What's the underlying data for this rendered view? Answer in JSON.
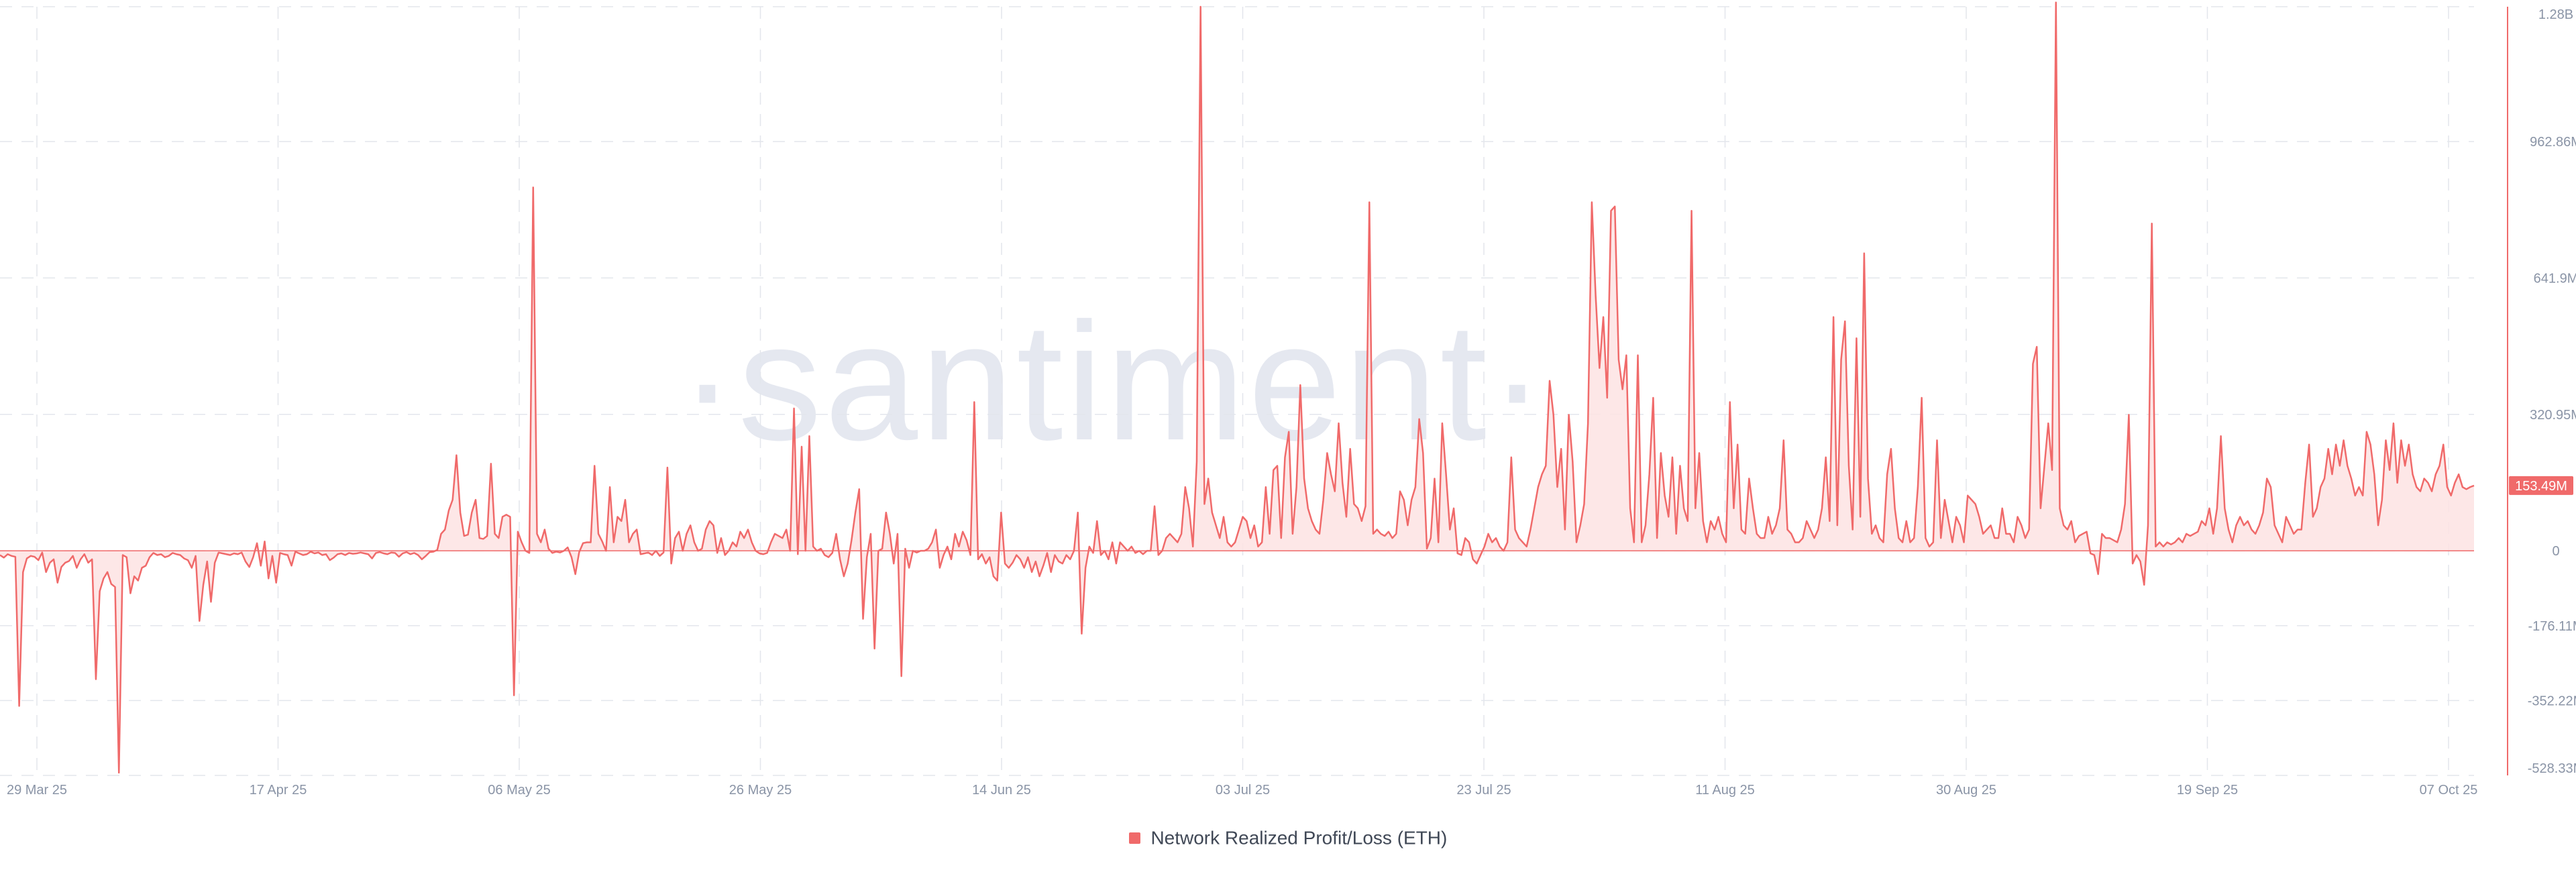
{
  "chart_data": {
    "type": "line",
    "watermark": "·santiment·",
    "x_tick_labels": [
      "29 Mar 25",
      "17 Apr 25",
      "06 May 25",
      "26 May 25",
      "14 Jun 25",
      "03 Jul 25",
      "23 Jul 25",
      "11 Aug 25",
      "30 Aug 25",
      "19 Sep 25",
      "07 Oct 25"
    ],
    "y_tick_labels": [
      {
        "value": 1280,
        "label": "1.28B"
      },
      {
        "value": 962.86,
        "label": "962.86M"
      },
      {
        "value": 641.9,
        "label": "641.9M"
      },
      {
        "value": 320.95,
        "label": "320.95M"
      },
      {
        "value": 0,
        "label": "0"
      },
      {
        "value": -176.11,
        "label": "-176.11M"
      },
      {
        "value": -352.22,
        "label": "-352.22M"
      },
      {
        "value": -528.33,
        "label": "-528.33M"
      }
    ],
    "y_unit": "M",
    "ylim": [
      -528.33,
      1280
    ],
    "x_range": [
      "29 Mar 25",
      "07 Oct 25"
    ],
    "current_value_label": "153.49M",
    "current_value": 153.49,
    "grid": true,
    "legend_position": "bottom-center",
    "series": [
      {
        "name": "Network Realized Profit/Loss (ETH)",
        "color": "#f06a6a",
        "fill": "#fde3e3",
        "values": [
          -10,
          -16,
          -8,
          -12,
          -14,
          -365,
          -50,
          -18,
          -12,
          -14,
          -22,
          -4,
          -50,
          -28,
          -20,
          -75,
          -38,
          -28,
          -24,
          -12,
          -40,
          -20,
          -8,
          -28,
          -20,
          -302,
          -95,
          -65,
          -50,
          -78,
          -85,
          -522,
          -10,
          -15,
          -100,
          -60,
          -70,
          -40,
          -35,
          -15,
          -5,
          -10,
          -8,
          -15,
          -12,
          -5,
          -8,
          -10,
          -18,
          -22,
          -40,
          -12,
          -165,
          -80,
          -25,
          -120,
          -28,
          -4,
          -6,
          -8,
          -10,
          -6,
          -8,
          -4,
          -25,
          -38,
          -15,
          18,
          -35,
          22,
          -65,
          -12,
          -75,
          -5,
          -8,
          -10,
          -35,
          -2,
          -6,
          -10,
          -8,
          -2,
          -6,
          -4,
          -10,
          -8,
          -22,
          -16,
          -8,
          -6,
          -10,
          -5,
          -7,
          -6,
          -4,
          -6,
          -8,
          -18,
          -5,
          -3,
          -6,
          -8,
          -4,
          -5,
          -14,
          -6,
          -3,
          -8,
          -5,
          -10,
          -20,
          -12,
          -3,
          -2,
          2,
          40,
          50,
          95,
          120,
          225,
          90,
          35,
          38,
          90,
          120,
          30,
          28,
          35,
          205,
          40,
          30,
          80,
          85,
          80,
          -340,
          45,
          20,
          0,
          -5,
          855,
          40,
          20,
          50,
          5,
          -5,
          -2,
          -4,
          0,
          8,
          -15,
          -55,
          -3,
          18,
          20,
          20,
          200,
          40,
          22,
          0,
          150,
          20,
          80,
          70,
          120,
          20,
          40,
          50,
          -8,
          -6,
          -4,
          -10,
          0,
          -12,
          -4,
          196,
          -30,
          30,
          45,
          0,
          40,
          60,
          20,
          0,
          5,
          50,
          70,
          60,
          -5,
          30,
          -10,
          0,
          20,
          10,
          45,
          30,
          50,
          20,
          0,
          -6,
          -8,
          -5,
          20,
          40,
          35,
          30,
          50,
          0,
          335,
          -8,
          245,
          0,
          270,
          10,
          0,
          5,
          -10,
          -15,
          -5,
          40,
          -20,
          -60,
          -30,
          25,
          90,
          145,
          -160,
          -15,
          40,
          -230,
          0,
          5,
          90,
          40,
          -30,
          40,
          -295,
          5,
          -40,
          0,
          -4,
          0,
          0,
          5,
          20,
          50,
          -40,
          -10,
          10,
          -20,
          40,
          10,
          45,
          25,
          -10,
          350,
          -20,
          -8,
          -30,
          -15,
          -60,
          -70,
          90,
          -30,
          -40,
          -28,
          -10,
          -20,
          -40,
          -15,
          -50,
          -25,
          -60,
          -35,
          -5,
          -50,
          -10,
          -25,
          -30,
          -10,
          -20,
          0,
          90,
          -195,
          -40,
          10,
          -5,
          70,
          -10,
          0,
          -20,
          20,
          -30,
          20,
          10,
          0,
          10,
          -5,
          0,
          -8,
          0,
          0,
          105,
          -10,
          0,
          30,
          40,
          30,
          20,
          40,
          150,
          100,
          10,
          210,
          1280,
          110,
          170,
          90,
          60,
          30,
          80,
          20,
          10,
          20,
          50,
          80,
          70,
          30,
          60,
          10,
          20,
          150,
          40,
          190,
          200,
          30,
          220,
          280,
          40,
          150,
          390,
          170,
          100,
          70,
          50,
          40,
          120,
          230,
          180,
          140,
          300,
          160,
          80,
          240,
          110,
          100,
          70,
          105,
          820,
          40,
          50,
          40,
          35,
          45,
          30,
          40,
          140,
          120,
          60,
          120,
          150,
          310,
          230,
          5,
          30,
          170,
          20,
          300,
          180,
          50,
          100,
          -6,
          -10,
          30,
          20,
          -20,
          -30,
          -10,
          10,
          40,
          20,
          30,
          10,
          0,
          20,
          220,
          50,
          30,
          20,
          10,
          50,
          100,
          150,
          180,
          200,
          400,
          320,
          150,
          240,
          50,
          320,
          210,
          20,
          60,
          110,
          300,
          820,
          600,
          430,
          550,
          360,
          800,
          810,
          450,
          380,
          460,
          100,
          20,
          460,
          20,
          60,
          180,
          360,
          30,
          230,
          130,
          80,
          220,
          40,
          200,
          100,
          70,
          800,
          100,
          230,
          70,
          20,
          70,
          50,
          80,
          40,
          20,
          350,
          100,
          250,
          50,
          40,
          170,
          100,
          40,
          30,
          30,
          80,
          40,
          60,
          100,
          260,
          50,
          40,
          20,
          20,
          30,
          70,
          50,
          30,
          50,
          100,
          220,
          70,
          550,
          60,
          450,
          540,
          200,
          50,
          500,
          80,
          700,
          170,
          40,
          60,
          30,
          20,
          180,
          240,
          100,
          30,
          20,
          70,
          20,
          30,
          150,
          360,
          30,
          10,
          20,
          260,
          30,
          120,
          70,
          20,
          80,
          60,
          20,
          130,
          120,
          110,
          80,
          40,
          50,
          60,
          30,
          30,
          100,
          40,
          40,
          20,
          80,
          60,
          30,
          50,
          440,
          480,
          100,
          200,
          300,
          190,
          1290,
          100,
          60,
          50,
          70,
          20,
          35,
          40,
          45,
          -6,
          -10,
          -55,
          40,
          30,
          30,
          25,
          20,
          50,
          110,
          320,
          -30,
          -10,
          -25,
          -80,
          60,
          770,
          10,
          20,
          10,
          20,
          15,
          20,
          30,
          20,
          40,
          35,
          40,
          45,
          70,
          60,
          100,
          40,
          100,
          270,
          100,
          50,
          20,
          60,
          80,
          60,
          70,
          50,
          40,
          60,
          90,
          170,
          150,
          60,
          40,
          20,
          80,
          60,
          40,
          50,
          50,
          160,
          250,
          80,
          100,
          150,
          170,
          240,
          180,
          250,
          200,
          260,
          200,
          170,
          130,
          150,
          130,
          280,
          250,
          180,
          60,
          120,
          260,
          190,
          300,
          160,
          260,
          200,
          250,
          180,
          150,
          140,
          170,
          160,
          140,
          180,
          200,
          250,
          150,
          130,
          160,
          180,
          150,
          145,
          150,
          153.49
        ]
      }
    ]
  }
}
